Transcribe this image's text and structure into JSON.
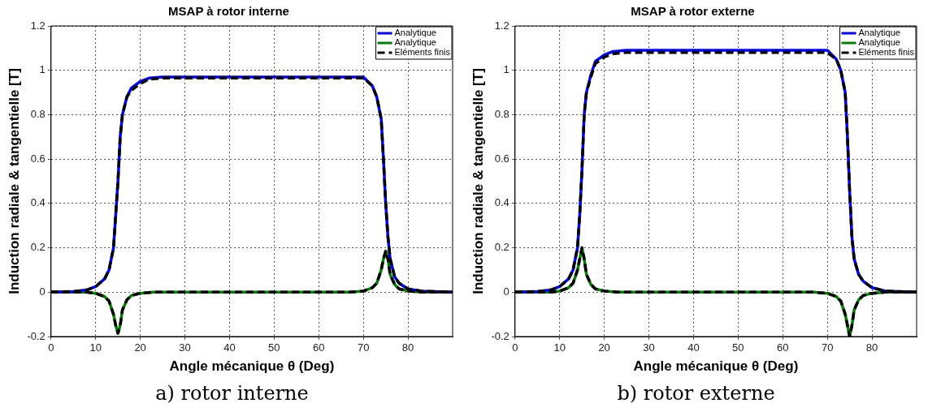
{
  "chart_data": [
    {
      "type": "line",
      "title": "MSAP à rotor interne",
      "xlabel": "Angle mécanique θ (Deg)",
      "ylabel": "Induction radiale & tangentielle [T]",
      "xlim": [
        0,
        90
      ],
      "xticks": [
        0,
        10,
        20,
        30,
        40,
        50,
        60,
        70,
        80
      ],
      "ylim": [
        -0.2,
        1.2
      ],
      "yticks": [
        -0.2,
        0,
        0.2,
        0.4,
        0.6,
        0.8,
        1,
        1.2
      ],
      "grid": true,
      "legend": "top right",
      "annotations": [
        "a) rotor interne"
      ],
      "series": [
        {
          "name": "Analytique",
          "color": "#0000ff",
          "line_style": "solid",
          "x": [
            0,
            5,
            8,
            10,
            12,
            13,
            14,
            14.5,
            15,
            15.5,
            16,
            17,
            18,
            20,
            22,
            25,
            70,
            72,
            73,
            74,
            74.5,
            75,
            75.5,
            76,
            77,
            78,
            80,
            83,
            90
          ],
          "values": [
            0,
            0.003,
            0.01,
            0.025,
            0.06,
            0.1,
            0.2,
            0.35,
            0.5,
            0.7,
            0.8,
            0.88,
            0.92,
            0.95,
            0.965,
            0.97,
            0.97,
            0.93,
            0.88,
            0.78,
            0.6,
            0.4,
            0.25,
            0.15,
            0.07,
            0.04,
            0.015,
            0.005,
            0
          ]
        },
        {
          "name": "Analytique",
          "color": "#008000",
          "line_style": "solid",
          "x": [
            0,
            8,
            10,
            12,
            13,
            14,
            14.5,
            15,
            15.5,
            16,
            17,
            18,
            20,
            23,
            67,
            70,
            72,
            73,
            74,
            74.5,
            75,
            75.5,
            76,
            77,
            78,
            80,
            83,
            90
          ],
          "values": [
            0,
            0,
            -0.005,
            -0.02,
            -0.04,
            -0.1,
            -0.15,
            -0.185,
            -0.15,
            -0.08,
            -0.035,
            -0.015,
            -0.005,
            0,
            0,
            0.005,
            0.02,
            0.04,
            0.1,
            0.15,
            0.185,
            0.15,
            0.08,
            0.035,
            0.015,
            0.005,
            0,
            0
          ]
        },
        {
          "name": "Eléments finis",
          "color": "#000000",
          "line_style": "dashed",
          "x": [
            0,
            5,
            8,
            10,
            12,
            13,
            14,
            14.5,
            15,
            15.5,
            16,
            17,
            18,
            20,
            22,
            25,
            70,
            72,
            73,
            74,
            74.5,
            75,
            75.5,
            76,
            77,
            78,
            80,
            83,
            90
          ],
          "values": [
            0,
            0.003,
            0.01,
            0.025,
            0.06,
            0.1,
            0.2,
            0.35,
            0.5,
            0.7,
            0.8,
            0.88,
            0.91,
            0.94,
            0.96,
            0.965,
            0.965,
            0.93,
            0.88,
            0.78,
            0.6,
            0.4,
            0.25,
            0.15,
            0.07,
            0.04,
            0.015,
            0.005,
            0
          ]
        },
        {
          "color": "#000000",
          "line_style": "dashed",
          "x": [
            0,
            8,
            10,
            12,
            13,
            14,
            14.5,
            15,
            15.5,
            16,
            17,
            18,
            20,
            23,
            67,
            70,
            72,
            73,
            74,
            74.5,
            75,
            75.5,
            76,
            77,
            78,
            80,
            83,
            90
          ],
          "values": [
            0,
            0,
            -0.005,
            -0.02,
            -0.04,
            -0.1,
            -0.15,
            -0.185,
            -0.15,
            -0.08,
            -0.035,
            -0.015,
            -0.005,
            0,
            0,
            0.005,
            0.02,
            0.04,
            0.1,
            0.15,
            0.185,
            0.15,
            0.08,
            0.035,
            0.015,
            0.005,
            0,
            0
          ]
        }
      ]
    },
    {
      "type": "line",
      "title": "MSAP à rotor externe",
      "xlabel": "Angle mécanique θ (Deg)",
      "ylabel": "Induction radiale & tangentielle [T]",
      "xlim": [
        0,
        90
      ],
      "xticks": [
        0,
        10,
        20,
        30,
        40,
        50,
        60,
        70,
        80
      ],
      "ylim": [
        -0.2,
        1.2
      ],
      "yticks": [
        -0.2,
        0,
        0.2,
        0.4,
        0.6,
        0.8,
        1,
        1.2
      ],
      "grid": true,
      "legend": "top right",
      "annotations": [
        "b) rotor externe"
      ],
      "series": [
        {
          "name": "Analytique",
          "color": "#0000ff",
          "line_style": "solid",
          "x": [
            0,
            5,
            8,
            10,
            12,
            13,
            14,
            14.5,
            15,
            15.5,
            16,
            17,
            18,
            20,
            22,
            25,
            70,
            72,
            73,
            74,
            74.5,
            75,
            75.5,
            76,
            77,
            78,
            80,
            83,
            90
          ],
          "values": [
            0,
            0.003,
            0.01,
            0.025,
            0.06,
            0.1,
            0.2,
            0.35,
            0.55,
            0.8,
            0.9,
            0.98,
            1.04,
            1.07,
            1.085,
            1.09,
            1.09,
            1.05,
            1,
            0.9,
            0.7,
            0.45,
            0.25,
            0.15,
            0.08,
            0.05,
            0.02,
            0.005,
            0
          ]
        },
        {
          "name": "Analytique",
          "color": "#008000",
          "line_style": "solid",
          "x": [
            0,
            8,
            10,
            12,
            13,
            14,
            14.5,
            15,
            15.5,
            16,
            17,
            18,
            20,
            23,
            67,
            70,
            72,
            73,
            74,
            74.5,
            75,
            75.5,
            76,
            77,
            78,
            80,
            83,
            90
          ],
          "values": [
            0,
            0,
            0.005,
            0.02,
            0.04,
            0.1,
            0.15,
            0.2,
            0.15,
            0.08,
            0.035,
            0.015,
            0.005,
            0,
            0,
            -0.005,
            -0.02,
            -0.04,
            -0.1,
            -0.15,
            -0.2,
            -0.15,
            -0.08,
            -0.035,
            -0.015,
            -0.005,
            0,
            0
          ]
        },
        {
          "name": "Eléments finis",
          "color": "#000000",
          "line_style": "dashed",
          "x": [
            0,
            5,
            8,
            10,
            12,
            13,
            14,
            14.5,
            15,
            15.5,
            16,
            17,
            18,
            20,
            22,
            25,
            70,
            72,
            73,
            74,
            74.5,
            75,
            75.5,
            76,
            77,
            78,
            80,
            83,
            90
          ],
          "values": [
            0,
            0.003,
            0.01,
            0.025,
            0.06,
            0.1,
            0.2,
            0.35,
            0.55,
            0.8,
            0.9,
            0.97,
            1.03,
            1.06,
            1.075,
            1.08,
            1.08,
            1.05,
            1,
            0.9,
            0.7,
            0.45,
            0.25,
            0.15,
            0.08,
            0.05,
            0.02,
            0.005,
            0
          ]
        },
        {
          "color": "#000000",
          "line_style": "dashed",
          "x": [
            0,
            8,
            10,
            12,
            13,
            14,
            14.5,
            15,
            15.5,
            16,
            17,
            18,
            20,
            23,
            67,
            70,
            72,
            73,
            74,
            74.5,
            75,
            75.5,
            76,
            77,
            78,
            80,
            83,
            90
          ],
          "values": [
            0,
            0,
            0.005,
            0.02,
            0.04,
            0.1,
            0.15,
            0.2,
            0.15,
            0.08,
            0.035,
            0.015,
            0.005,
            0,
            0,
            -0.005,
            -0.02,
            -0.04,
            -0.1,
            -0.15,
            -0.2,
            -0.15,
            -0.08,
            -0.035,
            -0.015,
            -0.005,
            0,
            0
          ]
        }
      ]
    }
  ]
}
